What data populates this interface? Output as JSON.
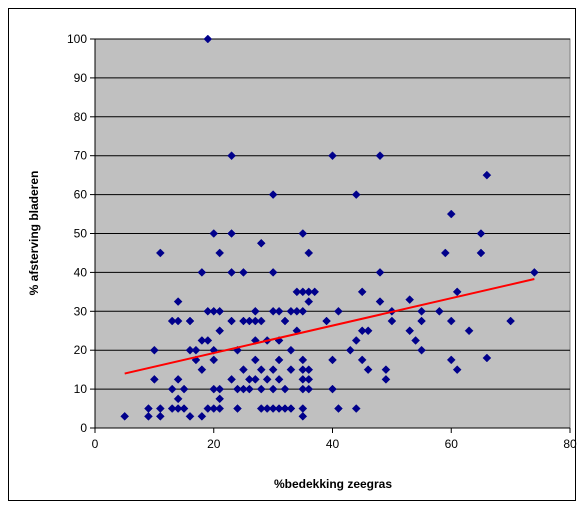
{
  "chart_data": {
    "type": "scatter",
    "title": "",
    "xlabel": "%bedekking zeegras",
    "ylabel": "% afsterving bladeren",
    "xlim": [
      0,
      80
    ],
    "ylim": [
      0,
      100
    ],
    "xticks": [
      0,
      20,
      40,
      60,
      80
    ],
    "yticks": [
      0,
      10,
      20,
      30,
      40,
      50,
      60,
      70,
      80,
      90,
      100
    ],
    "grid": "horizontal",
    "legend": "none",
    "colors": {
      "plot_background": "#c0c0c0",
      "marker": "#00008b",
      "trendline": "#ff0000",
      "gridline": "#000000"
    },
    "series": [
      {
        "marker": "diamond",
        "points": [
          [
            5,
            3
          ],
          [
            9,
            5
          ],
          [
            9,
            3
          ],
          [
            10,
            20
          ],
          [
            10,
            12.5
          ],
          [
            11,
            45
          ],
          [
            11,
            5
          ],
          [
            11,
            3
          ],
          [
            13,
            27.5
          ],
          [
            13,
            10
          ],
          [
            13,
            5
          ],
          [
            14,
            32.5
          ],
          [
            14,
            27.5
          ],
          [
            14,
            12.5
          ],
          [
            14,
            7.5
          ],
          [
            14,
            5
          ],
          [
            15,
            10
          ],
          [
            15,
            5
          ],
          [
            16,
            27.5
          ],
          [
            16,
            20
          ],
          [
            16,
            3
          ],
          [
            17,
            17.5
          ],
          [
            17,
            20
          ],
          [
            18,
            40
          ],
          [
            18,
            22.5
          ],
          [
            18,
            15
          ],
          [
            18,
            3
          ],
          [
            19,
            100
          ],
          [
            19,
            30
          ],
          [
            19,
            22.5
          ],
          [
            19,
            5
          ],
          [
            20,
            50
          ],
          [
            20,
            30
          ],
          [
            20,
            20
          ],
          [
            20,
            17.5
          ],
          [
            20,
            10
          ],
          [
            20,
            5
          ],
          [
            21,
            45
          ],
          [
            21,
            30
          ],
          [
            21,
            25
          ],
          [
            21,
            10
          ],
          [
            21,
            7.5
          ],
          [
            21,
            5
          ],
          [
            23,
            70
          ],
          [
            23,
            50
          ],
          [
            23,
            40
          ],
          [
            23,
            27.5
          ],
          [
            23,
            12.5
          ],
          [
            24,
            20
          ],
          [
            24,
            10
          ],
          [
            24,
            5
          ],
          [
            25,
            40
          ],
          [
            25,
            27.5
          ],
          [
            25,
            15
          ],
          [
            25,
            10
          ],
          [
            26,
            27.5
          ],
          [
            26,
            12.5
          ],
          [
            26,
            10
          ],
          [
            27,
            30
          ],
          [
            27,
            27.5
          ],
          [
            27,
            22.5
          ],
          [
            27,
            17.5
          ],
          [
            27,
            12.5
          ],
          [
            28,
            47.5
          ],
          [
            28,
            27.5
          ],
          [
            28,
            15
          ],
          [
            28,
            10
          ],
          [
            28,
            5
          ],
          [
            29,
            22.5
          ],
          [
            29,
            12.5
          ],
          [
            29,
            5
          ],
          [
            30,
            60
          ],
          [
            30,
            40
          ],
          [
            30,
            30
          ],
          [
            30,
            15
          ],
          [
            30,
            10
          ],
          [
            30,
            5
          ],
          [
            31,
            30
          ],
          [
            31,
            22.5
          ],
          [
            31,
            17.5
          ],
          [
            31,
            12.5
          ],
          [
            31,
            5
          ],
          [
            32,
            27.5
          ],
          [
            32,
            10
          ],
          [
            32,
            5
          ],
          [
            33,
            30
          ],
          [
            33,
            20
          ],
          [
            33,
            15
          ],
          [
            33,
            5
          ],
          [
            34,
            35
          ],
          [
            34,
            30
          ],
          [
            34,
            25
          ],
          [
            35,
            50
          ],
          [
            35,
            35
          ],
          [
            35,
            30
          ],
          [
            35,
            17.5
          ],
          [
            35,
            15
          ],
          [
            35,
            12.5
          ],
          [
            35,
            10
          ],
          [
            35,
            5
          ],
          [
            35,
            3
          ],
          [
            36,
            45
          ],
          [
            36,
            35
          ],
          [
            36,
            32.5
          ],
          [
            36,
            15
          ],
          [
            36,
            12.5
          ],
          [
            36,
            10
          ],
          [
            37,
            35
          ],
          [
            39,
            27.5
          ],
          [
            40,
            70
          ],
          [
            40,
            17.5
          ],
          [
            40,
            10
          ],
          [
            41,
            30
          ],
          [
            41,
            5
          ],
          [
            43,
            20
          ],
          [
            44,
            60
          ],
          [
            44,
            22.5
          ],
          [
            44,
            5
          ],
          [
            45,
            35
          ],
          [
            45,
            25
          ],
          [
            45,
            17.5
          ],
          [
            46,
            25
          ],
          [
            46,
            15
          ],
          [
            48,
            70
          ],
          [
            48,
            40
          ],
          [
            48,
            32.5
          ],
          [
            49,
            15
          ],
          [
            49,
            12.5
          ],
          [
            50,
            30
          ],
          [
            50,
            27.5
          ],
          [
            53,
            33
          ],
          [
            53,
            25
          ],
          [
            54,
            22.5
          ],
          [
            55,
            30
          ],
          [
            55,
            27.5
          ],
          [
            55,
            20
          ],
          [
            58,
            30
          ],
          [
            59,
            45
          ],
          [
            60,
            55
          ],
          [
            60,
            27.5
          ],
          [
            60,
            17.5
          ],
          [
            61,
            35
          ],
          [
            61,
            15
          ],
          [
            63,
            25
          ],
          [
            65,
            50
          ],
          [
            65,
            45
          ],
          [
            66,
            65
          ],
          [
            66,
            18
          ],
          [
            70,
            27.5
          ],
          [
            74,
            40
          ]
        ]
      }
    ],
    "trendline": {
      "type": "linear",
      "x": [
        5,
        74
      ],
      "y": [
        14,
        38.3
      ]
    }
  }
}
